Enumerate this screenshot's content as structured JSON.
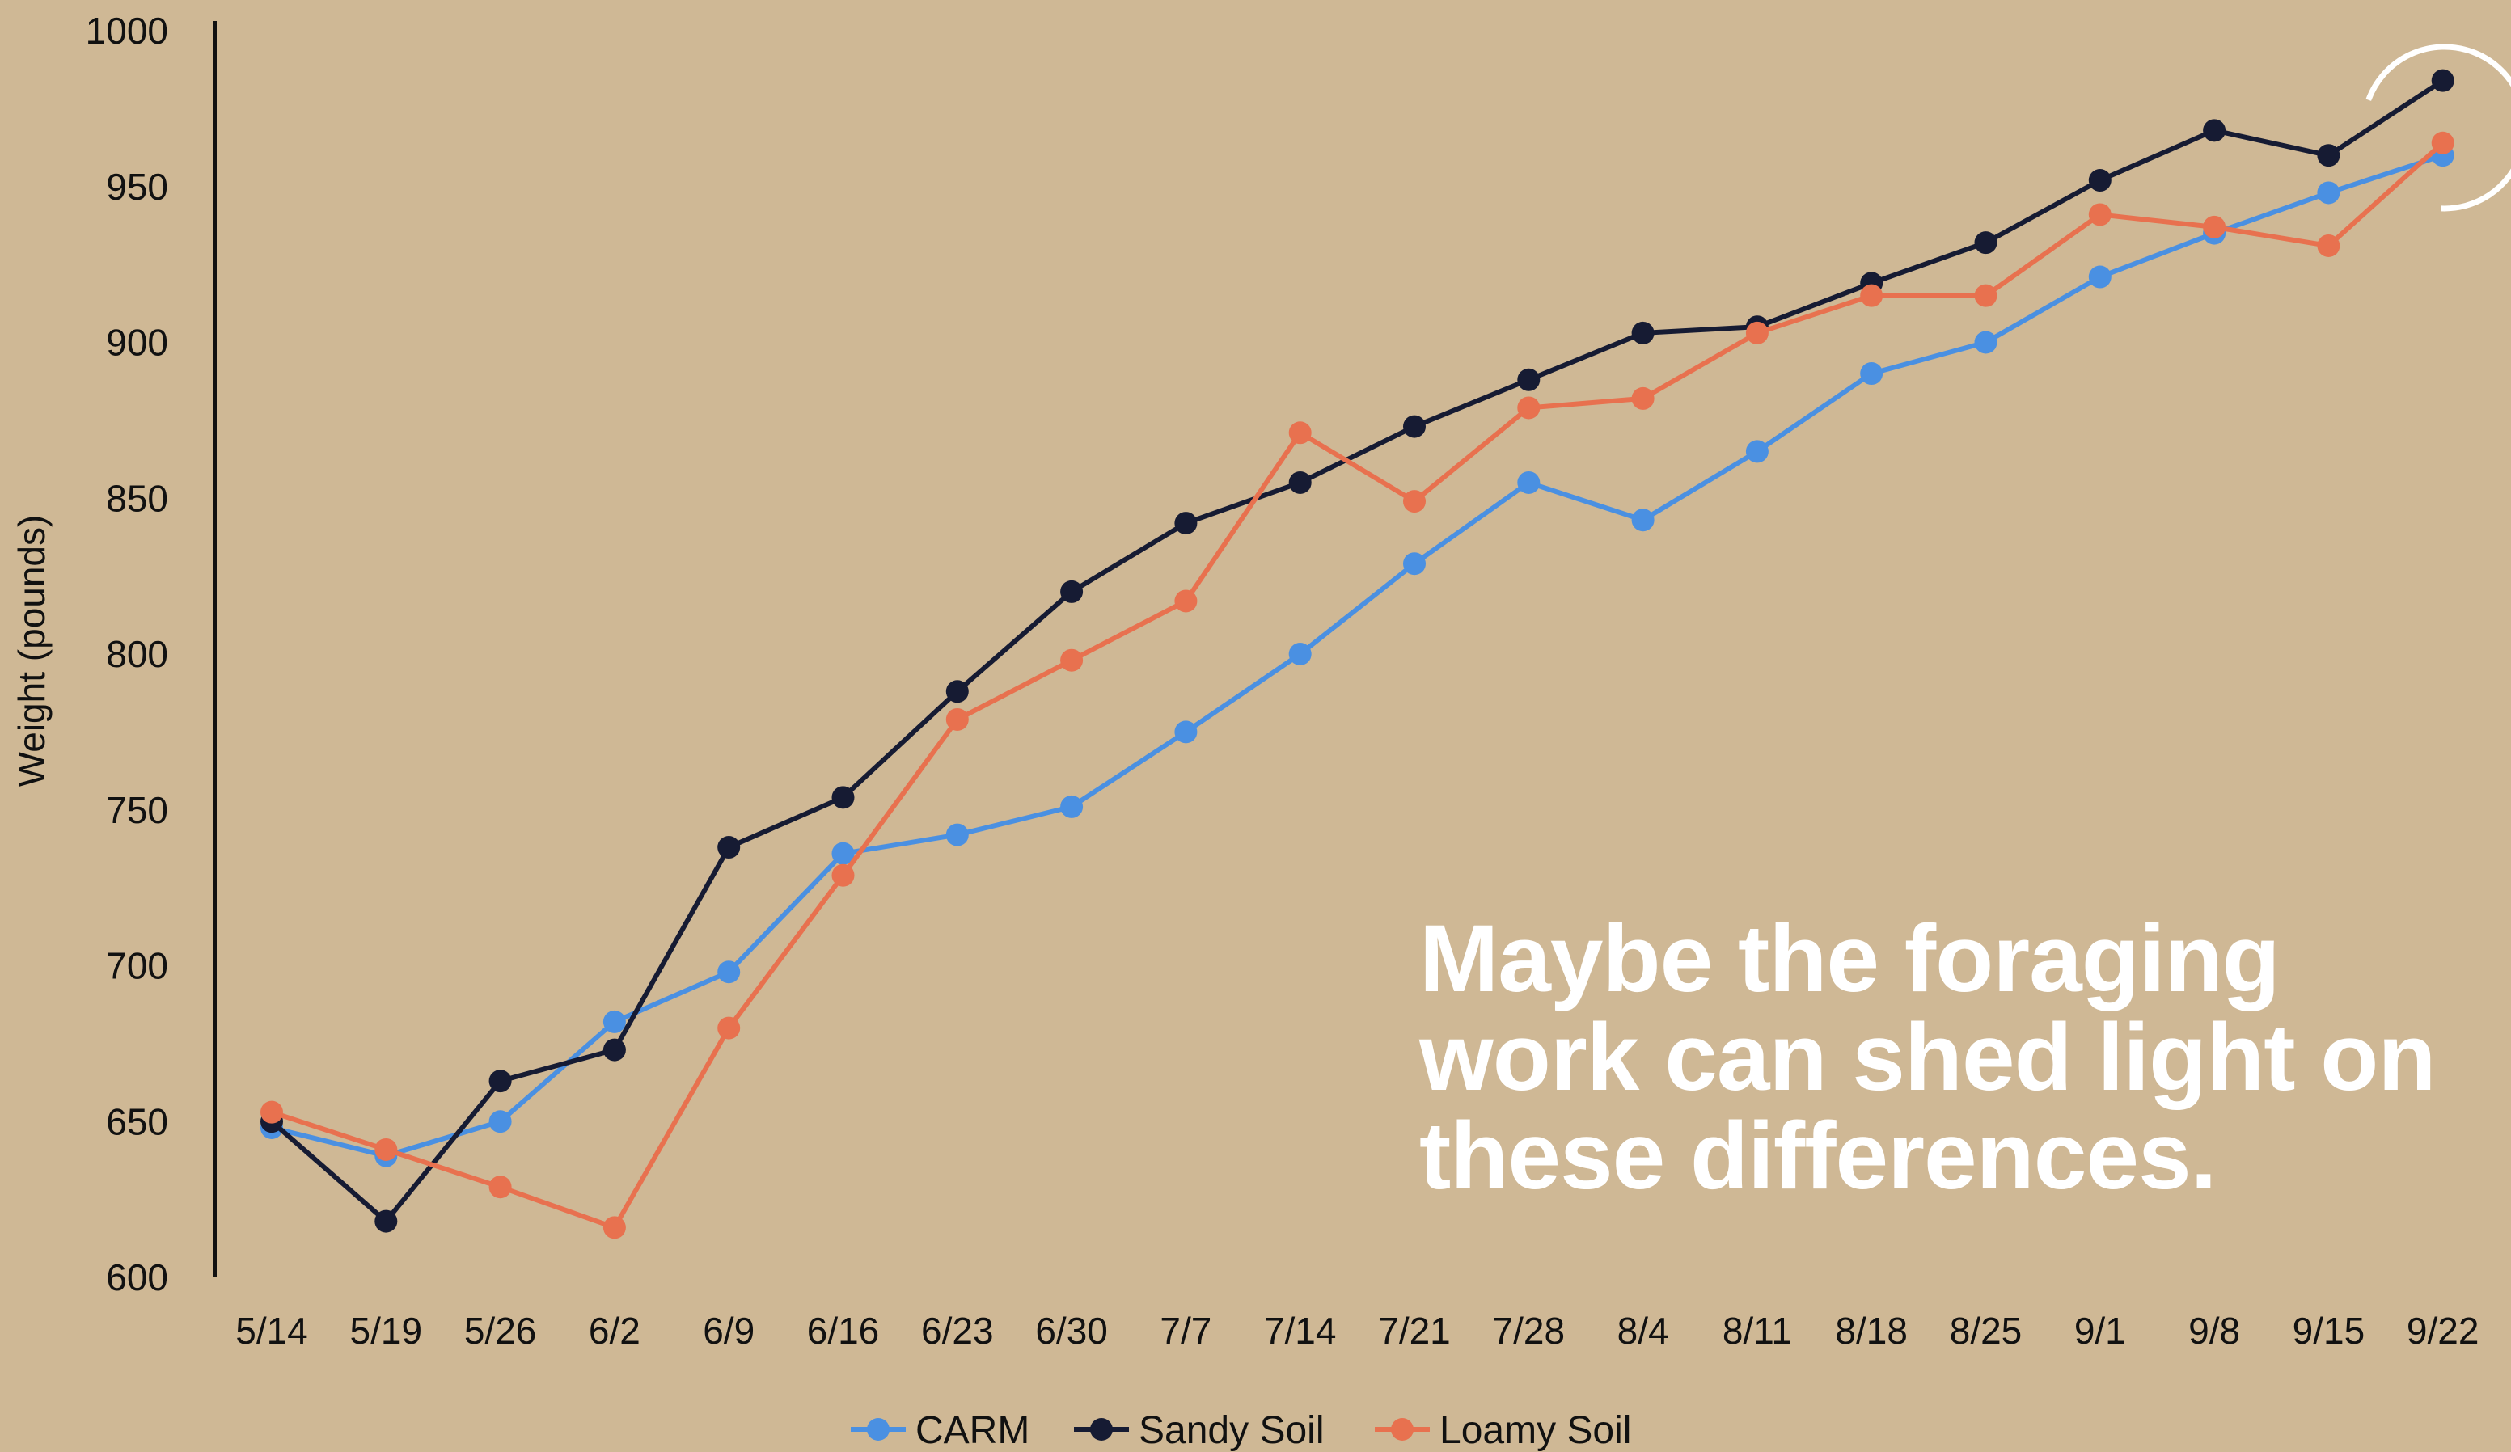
{
  "chart_data": {
    "type": "line",
    "title": "",
    "xlabel": "",
    "ylabel": "Weight (pounds)",
    "ylim": [
      600,
      1000
    ],
    "yticks": [
      600,
      650,
      700,
      750,
      800,
      850,
      900,
      950,
      1000
    ],
    "categories": [
      "5/14",
      "5/19",
      "5/26",
      "6/2",
      "6/9",
      "6/16",
      "6/23",
      "6/30",
      "7/7",
      "7/14",
      "7/21",
      "7/28",
      "8/4",
      "8/11",
      "8/18",
      "8/25",
      "9/1",
      "9/8",
      "9/15",
      "9/22"
    ],
    "series": [
      {
        "name": "CARM",
        "color": "#4a90e2",
        "values": [
          648,
          639,
          650,
          682,
          698,
          736,
          742,
          751,
          775,
          800,
          829,
          855,
          843,
          865,
          890,
          900,
          921,
          935,
          948,
          960
        ]
      },
      {
        "name": "Sandy Soil",
        "color": "#161b33",
        "values": [
          650,
          618,
          663,
          673,
          738,
          754,
          788,
          820,
          842,
          855,
          873,
          888,
          903,
          905,
          919,
          932,
          952,
          968,
          960,
          984
        ]
      },
      {
        "name": "Loamy Soil",
        "color": "#e8714f",
        "values": [
          653,
          641,
          629,
          616,
          680,
          729,
          779,
          798,
          817,
          871,
          849,
          879,
          882,
          903,
          915,
          915,
          941,
          937,
          931,
          964
        ]
      }
    ],
    "legend_position": "bottom-center",
    "grid": false,
    "highlight": {
      "shape": "circle",
      "category": "9/22",
      "color": "#ffffff"
    }
  },
  "annotation": {
    "lines": [
      "Maybe the foraging",
      "work can shed light on",
      "these differences."
    ]
  }
}
